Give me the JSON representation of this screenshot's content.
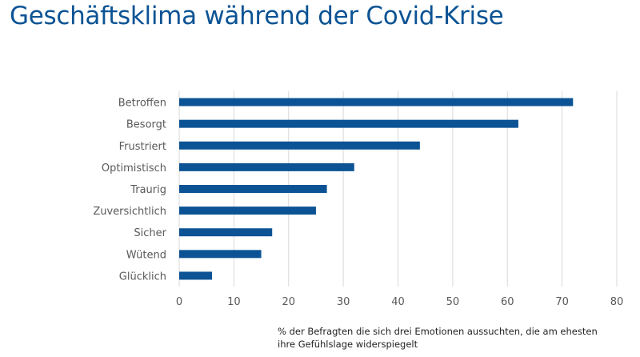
{
  "title": "Geschäftsklima während der Covid-Krise",
  "note": "% der Befragten die sich drei Emotionen aussuchten, die am ehesten ihre Gefühlslage widerspiegelt",
  "colors": {
    "bar": "#0b5394",
    "title": "#0b5394",
    "grid": "#d9d9d9",
    "tick": "#595959"
  },
  "chart_data": {
    "type": "bar",
    "orientation": "horizontal",
    "categories": [
      "Betroffen",
      "Besorgt",
      "Frustriert",
      "Optimistisch",
      "Traurig",
      "Zuversichtlich",
      "Sicher",
      "Wütend",
      "Glücklich"
    ],
    "values": [
      72,
      62,
      44,
      32,
      27,
      25,
      17,
      15,
      6
    ],
    "xlim": [
      0,
      80
    ],
    "xticks": [
      0,
      10,
      20,
      30,
      40,
      50,
      60,
      70,
      80
    ],
    "grid": true,
    "legend": "none"
  }
}
